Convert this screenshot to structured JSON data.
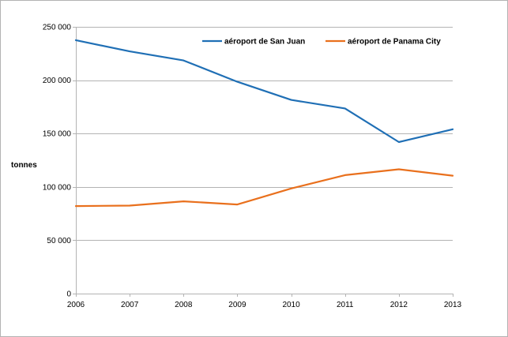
{
  "chart_data": {
    "type": "line",
    "ylabel": "tonnes",
    "ylim": [
      0,
      250000
    ],
    "x": [
      "2006",
      "2007",
      "2008",
      "2009",
      "2010",
      "2011",
      "2012",
      "2013"
    ],
    "y_ticks": [
      "0",
      "50 000",
      "100 000",
      "150 000",
      "200 000",
      "250 000"
    ],
    "y_tick_values": [
      0,
      50000,
      100000,
      150000,
      200000,
      250000
    ],
    "grid": true,
    "legend_position": "top-right",
    "series": [
      {
        "name": "aéroport de San Juan",
        "color": "#1f6fb5",
        "values": [
          237500,
          227000,
          218500,
          198500,
          181500,
          173500,
          142000,
          154000
        ]
      },
      {
        "name": "aéroport de Panama City",
        "color": "#e9701d",
        "values": [
          82000,
          82500,
          86500,
          83500,
          98500,
          111000,
          116500,
          110500
        ]
      }
    ]
  }
}
